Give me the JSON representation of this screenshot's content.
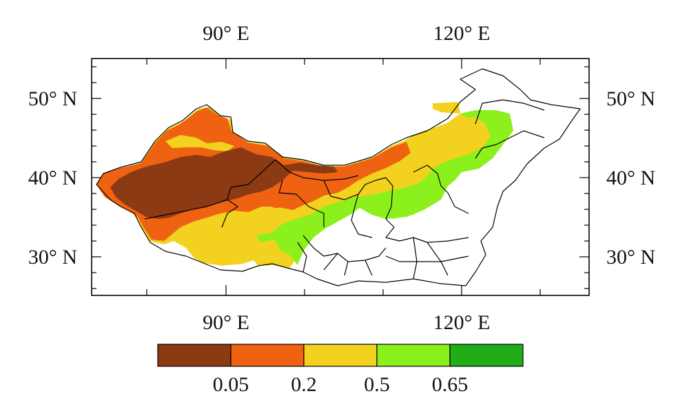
{
  "map": {
    "lon_labels": {
      "top": [
        "90° E",
        "120° E"
      ],
      "bottom": [
        "90° E",
        "120° E"
      ]
    },
    "lat_labels": {
      "left": [
        "50° N",
        "40° N",
        "30° N"
      ],
      "right": [
        "50° N",
        "40° N",
        "30° N"
      ]
    },
    "extent": {
      "lon": [
        73,
        136
      ],
      "lat": [
        25,
        55
      ]
    },
    "projection": "lat-lon"
  },
  "colorbar": {
    "orientation": "horizontal",
    "colors": [
      "#8b3a14",
      "#ee6212",
      "#f2d21e",
      "#8cf01c",
      "#20ad18"
    ],
    "tick_labels": [
      "0.05",
      "0.2",
      "0.5",
      "0.65"
    ]
  },
  "legend_colors": {
    "brown": "#8b3a14",
    "orange": "#ee6212",
    "yellow": "#f2d21e",
    "lightgreen": "#8cf01c",
    "green": "#20ad18"
  }
}
